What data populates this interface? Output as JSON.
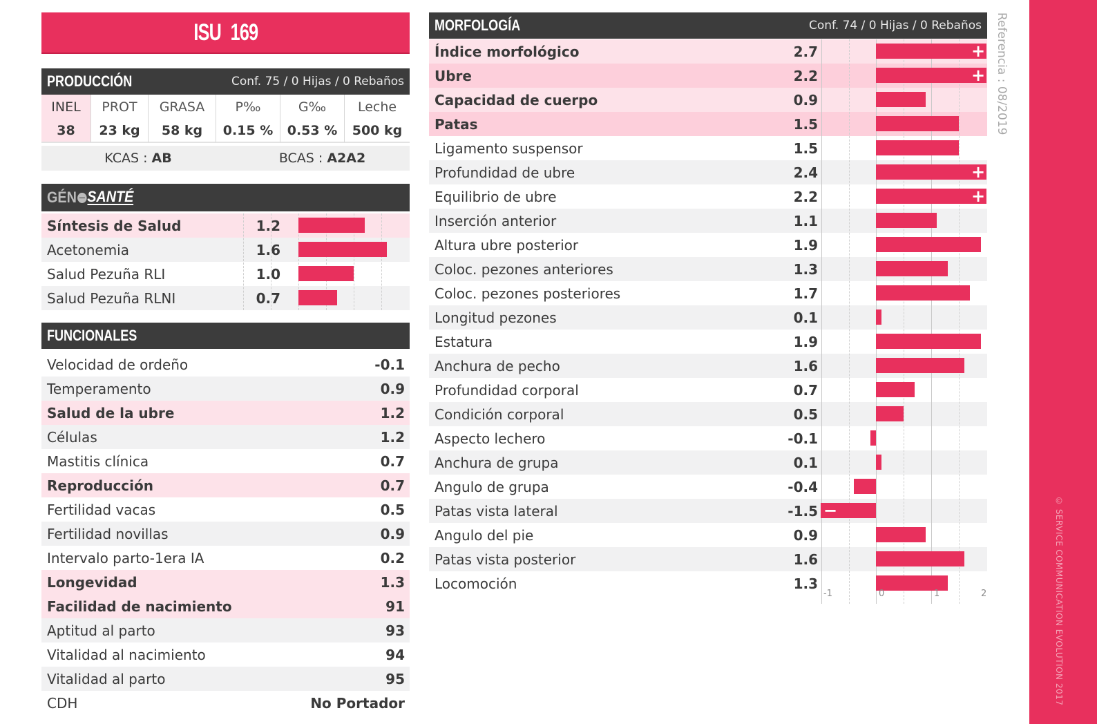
{
  "title": {
    "prefix": "ISU",
    "value": "169"
  },
  "reference": "Referencia : 08/2019",
  "copyright": "© SERVICE COMMUNICATION EVOLUTION 2017",
  "colors": {
    "accent": "#e8305d",
    "header": "#3c3c3c",
    "pink_light": "#fde2e9",
    "pink_mid": "#fdcfdb",
    "grey_row": "#f1f1f2"
  },
  "production": {
    "title": "PRODUCCIÓN",
    "conf": "Conf. 75 / 0 Hijas / 0 Rebaños",
    "columns": [
      "INEL",
      "PROT",
      "GRASA",
      "P‰",
      "G‰",
      "Leche"
    ],
    "values": [
      "38",
      "23 kg",
      "58 kg",
      "0.15 %",
      "0.53 %",
      "500 kg"
    ],
    "kcas_label": "KCAS : ",
    "kcas": "AB",
    "bcas_label": "BCAS : ",
    "bcas": "A2A2"
  },
  "geno_sante": {
    "logo_left": "GÉN",
    "logo_right": "SANTÉ",
    "rows": [
      {
        "label": "Síntesis de Salud",
        "value": "1.2",
        "num": 1.2,
        "bold": true
      },
      {
        "label": "Acetonemia",
        "value": "1.6",
        "num": 1.6,
        "bold": false
      },
      {
        "label": "Salud Pezuña RLI",
        "value": "1.0",
        "num": 1.0,
        "bold": false
      },
      {
        "label": "Salud Pezuña RLNI",
        "value": "0.7",
        "num": 0.7,
        "bold": false
      }
    ]
  },
  "funcionales": {
    "title": "FUNCIONALES",
    "rows": [
      {
        "label": "Velocidad de ordeño",
        "value": "-0.1",
        "bold": false
      },
      {
        "label": "Temperamento",
        "value": "0.9",
        "bold": false
      },
      {
        "label": "Salud de la ubre",
        "value": "1.2",
        "bold": true
      },
      {
        "label": "Células",
        "value": "1.2",
        "bold": false
      },
      {
        "label": "Mastitis clínica",
        "value": "0.7",
        "bold": false
      },
      {
        "label": "Reproducción",
        "value": "0.7",
        "bold": true
      },
      {
        "label": "Fertilidad vacas",
        "value": "0.5",
        "bold": false
      },
      {
        "label": "Fertilidad novillas",
        "value": "0.9",
        "bold": false
      },
      {
        "label": "Intervalo parto-1era IA",
        "value": "0.2",
        "bold": false
      },
      {
        "label": "Longevidad",
        "value": "1.3",
        "bold": true
      },
      {
        "label": "Facilidad de nacimiento",
        "value": "91",
        "bold": true
      },
      {
        "label": "Aptitud al parto",
        "value": "93",
        "bold": false
      },
      {
        "label": "Vitalidad al nacimiento",
        "value": "94",
        "bold": false
      },
      {
        "label": "Vitalidad al parto",
        "value": "95",
        "bold": false
      },
      {
        "label": "CDH",
        "value": "No Portador",
        "bold": false
      }
    ]
  },
  "morfologia": {
    "title": "MORFOLOGÍA",
    "conf": "Conf. 74 / 0 Hijas / 0 Rebaños",
    "axis_ticks": [
      "-1",
      "0",
      "1",
      "2"
    ],
    "rows": [
      {
        "label": "Índice morfológico",
        "value": "2.7",
        "num": 2.7,
        "bold": true,
        "marker": "+"
      },
      {
        "label": "Ubre",
        "value": "2.2",
        "num": 2.2,
        "bold": true,
        "marker": "+"
      },
      {
        "label": "Capacidad de cuerpo",
        "value": "0.9",
        "num": 0.9,
        "bold": true,
        "marker": ""
      },
      {
        "label": "Patas",
        "value": "1.5",
        "num": 1.5,
        "bold": true,
        "marker": ""
      },
      {
        "label": "Ligamento suspensor",
        "value": "1.5",
        "num": 1.5,
        "bold": false,
        "marker": ""
      },
      {
        "label": "Profundidad de ubre",
        "value": "2.4",
        "num": 2.4,
        "bold": false,
        "marker": "+"
      },
      {
        "label": "Equilibrio de ubre",
        "value": "2.2",
        "num": 2.2,
        "bold": false,
        "marker": "+"
      },
      {
        "label": "Inserción anterior",
        "value": "1.1",
        "num": 1.1,
        "bold": false,
        "marker": ""
      },
      {
        "label": "Altura ubre posterior",
        "value": "1.9",
        "num": 1.9,
        "bold": false,
        "marker": ""
      },
      {
        "label": "Coloc. pezones anteriores",
        "value": "1.3",
        "num": 1.3,
        "bold": false,
        "marker": ""
      },
      {
        "label": "Coloc. pezones posteriores",
        "value": "1.7",
        "num": 1.7,
        "bold": false,
        "marker": ""
      },
      {
        "label": "Longitud pezones",
        "value": "0.1",
        "num": 0.1,
        "bold": false,
        "marker": ""
      },
      {
        "label": "Estatura",
        "value": "1.9",
        "num": 1.9,
        "bold": false,
        "marker": ""
      },
      {
        "label": "Anchura de pecho",
        "value": "1.6",
        "num": 1.6,
        "bold": false,
        "marker": ""
      },
      {
        "label": "Profundidad corporal",
        "value": "0.7",
        "num": 0.7,
        "bold": false,
        "marker": ""
      },
      {
        "label": "Condición corporal",
        "value": "0.5",
        "num": 0.5,
        "bold": false,
        "marker": ""
      },
      {
        "label": "Aspecto lechero",
        "value": "-0.1",
        "num": -0.1,
        "bold": false,
        "marker": ""
      },
      {
        "label": "Anchura de grupa",
        "value": "0.1",
        "num": 0.1,
        "bold": false,
        "marker": ""
      },
      {
        "label": "Angulo de grupa",
        "value": "-0.4",
        "num": -0.4,
        "bold": false,
        "marker": ""
      },
      {
        "label": "Patas vista lateral",
        "value": "-1.5",
        "num": -1.5,
        "bold": false,
        "marker": "−"
      },
      {
        "label": "Angulo del pie",
        "value": "0.9",
        "num": 0.9,
        "bold": false,
        "marker": ""
      },
      {
        "label": "Patas vista posterior",
        "value": "1.6",
        "num": 1.6,
        "bold": false,
        "marker": ""
      },
      {
        "label": "Locomoción",
        "value": "1.3",
        "num": 1.3,
        "bold": false,
        "marker": ""
      }
    ]
  }
}
